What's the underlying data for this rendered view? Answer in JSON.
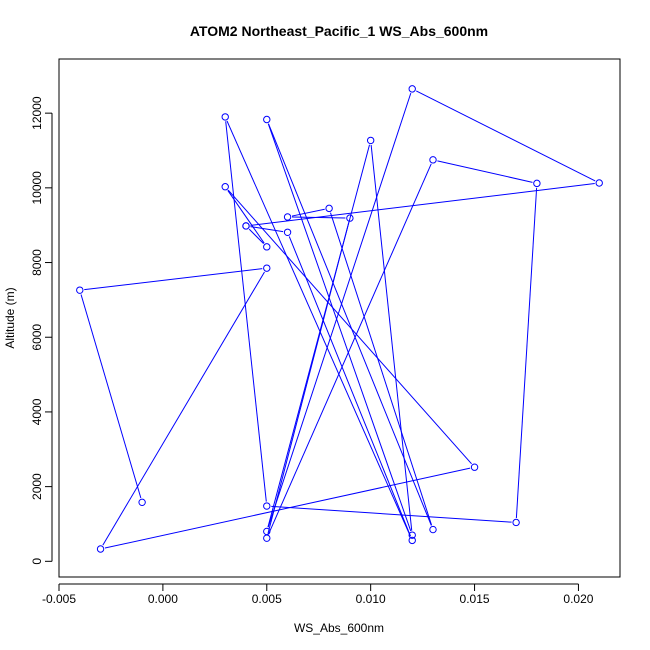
{
  "chart_data": {
    "type": "line",
    "title": "ATOM2 Northeast_Pacific_1 WS_Abs_600nm",
    "xlabel": "WS_Abs_600nm",
    "ylabel": "Altitude (m)",
    "xlim": [
      -0.005,
      0.022
    ],
    "ylim": [
      -420,
      13450
    ],
    "x_ticks": [
      -0.005,
      0.0,
      0.005,
      0.01,
      0.015,
      0.02
    ],
    "x_tick_labels": [
      "-0.005",
      "0.000",
      "0.005",
      "0.010",
      "0.015",
      "0.020"
    ],
    "y_ticks": [
      0,
      2000,
      4000,
      6000,
      8000,
      10000,
      12000
    ],
    "y_tick_labels": [
      "0",
      "2000",
      "4000",
      "6000",
      "8000",
      "10000",
      "12000"
    ],
    "grid": false,
    "legend": "none",
    "line_color": "#0000ff",
    "marker": "open-circle",
    "series": [
      {
        "points": [
          {
            "x": -0.001,
            "y": 1580
          },
          {
            "x": -0.004,
            "y": 7260
          },
          {
            "x": 0.005,
            "y": 7850
          },
          {
            "x": -0.003,
            "y": 330
          },
          {
            "x": 0.015,
            "y": 2520
          },
          {
            "x": 0.003,
            "y": 10030
          },
          {
            "x": 0.005,
            "y": 8420
          },
          {
            "x": 0.004,
            "y": 8980
          },
          {
            "x": 0.006,
            "y": 8810
          },
          {
            "x": 0.012,
            "y": 560
          },
          {
            "x": 0.003,
            "y": 11900
          },
          {
            "x": 0.005,
            "y": 1480
          },
          {
            "x": 0.017,
            "y": 1040
          },
          {
            "x": 0.018,
            "y": 10120
          },
          {
            "x": 0.013,
            "y": 10750
          },
          {
            "x": 0.005,
            "y": 620
          },
          {
            "x": 0.009,
            "y": 9190
          },
          {
            "x": 0.006,
            "y": 9220
          },
          {
            "x": 0.008,
            "y": 9450
          },
          {
            "x": 0.013,
            "y": 850
          },
          {
            "x": 0.005,
            "y": 11830
          },
          {
            "x": 0.012,
            "y": 700
          },
          {
            "x": 0.01,
            "y": 11270
          },
          {
            "x": 0.005,
            "y": 800
          },
          {
            "x": 0.012,
            "y": 12650
          },
          {
            "x": 0.021,
            "y": 10130
          },
          {
            "x": 0.004,
            "y": 8980
          }
        ]
      }
    ]
  }
}
